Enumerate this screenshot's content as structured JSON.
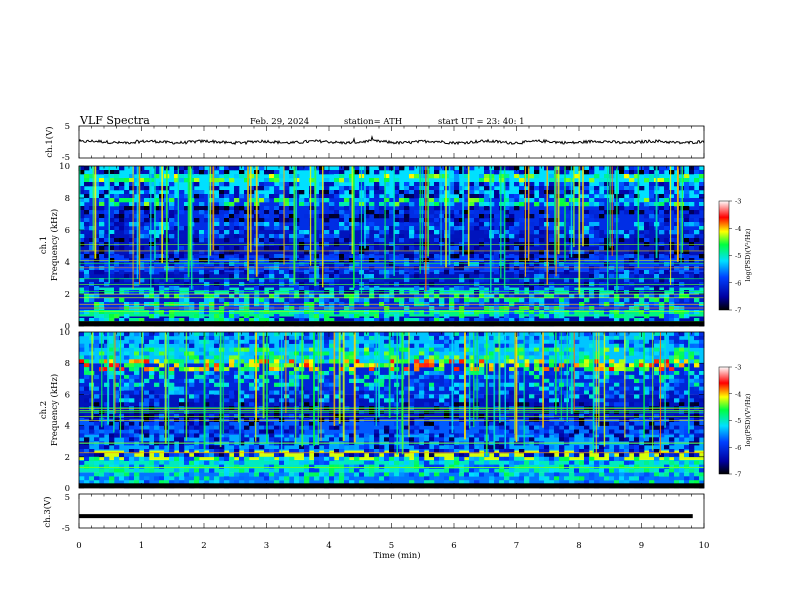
{
  "header": {
    "title": "VLF  Spectra",
    "date": "Feb. 29, 2024",
    "station": "station= ATH",
    "start_ut": "start  UT  =    23: 40: 1"
  },
  "chart_data": [
    {
      "type": "line",
      "panel": "ch1",
      "ylabel": "ch.1(V)",
      "ylim": [
        -5,
        5
      ],
      "ytick_labels": [
        "5",
        "-5"
      ],
      "xlim": [
        0,
        10
      ],
      "baseline": 0,
      "color": "#000000"
    },
    {
      "type": "heatmap",
      "panel": "ch1-spectrogram",
      "ylabel": "ch.1\nFrequency  (kHz)",
      "ylim": [
        0,
        10
      ],
      "ytick_labels": [
        "0",
        "2",
        "4",
        "6",
        "8",
        "10"
      ],
      "xlim": [
        0,
        10
      ],
      "colorbar": {
        "label": "log(PSD)(V²/Hz)",
        "range": [
          -7,
          -3
        ],
        "tick_labels": [
          "-3",
          "-4",
          "-5",
          "-6",
          "-7"
        ]
      },
      "bands": [
        {
          "f": [
            0.0,
            0.6
          ],
          "psd": -6.4
        },
        {
          "f": [
            0.6,
            1.0
          ],
          "psd": -4.8
        },
        {
          "f": [
            1.0,
            1.4
          ],
          "psd": -6.0
        },
        {
          "f": [
            1.4,
            2.0
          ],
          "psd": -6.2
        },
        {
          "f": [
            2.0,
            2.4
          ],
          "psd": -5.0
        },
        {
          "f": [
            2.4,
            3.4
          ],
          "psd": -6.3
        },
        {
          "f": [
            3.4,
            4.4
          ],
          "psd": -5.8
        },
        {
          "f": [
            4.4,
            6.0
          ],
          "psd": -6.3
        },
        {
          "f": [
            6.0,
            8.0
          ],
          "psd": -6.0
        },
        {
          "f": [
            8.0,
            10.0
          ],
          "psd": -5.2
        }
      ]
    },
    {
      "type": "heatmap",
      "panel": "ch2-spectrogram",
      "ylabel": "ch.2\nFrequency  (kHz)",
      "ylim": [
        0,
        10
      ],
      "ytick_labels": [
        "0",
        "2",
        "4",
        "6",
        "8",
        "10"
      ],
      "xlim": [
        0,
        10
      ],
      "colorbar": {
        "label": "log(PSD)(V²/Hz)",
        "range": [
          -7,
          -3
        ],
        "tick_labels": [
          "-3",
          "-4",
          "-5",
          "-6",
          "-7"
        ]
      },
      "bands": [
        {
          "f": [
            0.0,
            1.0
          ],
          "psd": -5.6
        },
        {
          "f": [
            1.0,
            1.8
          ],
          "psd": -5.0
        },
        {
          "f": [
            1.8,
            2.4
          ],
          "psd": -4.2
        },
        {
          "f": [
            2.4,
            3.4
          ],
          "psd": -5.4
        },
        {
          "f": [
            3.4,
            4.4
          ],
          "psd": -5.7
        },
        {
          "f": [
            4.4,
            6.0
          ],
          "psd": -6.3
        },
        {
          "f": [
            6.0,
            8.0
          ],
          "psd": -6.1
        },
        {
          "f": [
            8.0,
            10.0
          ],
          "psd": -5.3
        }
      ]
    },
    {
      "type": "line",
      "panel": "ch3",
      "ylabel": "ch.3(V)",
      "ylim": [
        -5,
        5
      ],
      "ytick_labels": [
        "5",
        "-5"
      ],
      "xlim": [
        0,
        10
      ],
      "constant_value": -1.5,
      "color": "#000000"
    }
  ],
  "x_axis": {
    "label": "Time  (min)",
    "range": [
      0,
      10
    ],
    "tick_labels": [
      "0",
      "1",
      "2",
      "3",
      "4",
      "5",
      "6",
      "7",
      "8",
      "9",
      "10"
    ]
  }
}
